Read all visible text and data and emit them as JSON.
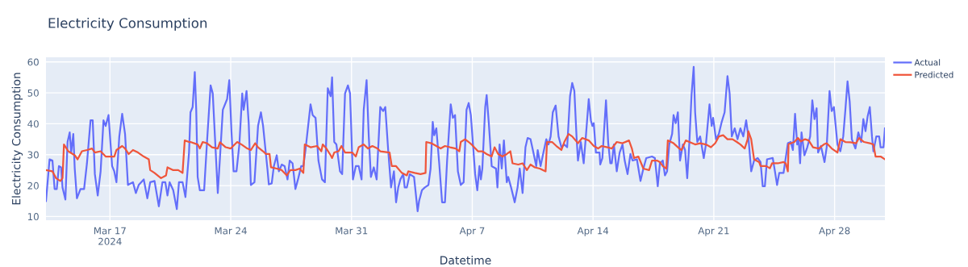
{
  "chart_data": {
    "type": "line",
    "title": "Electricity Consumption",
    "xlabel": "Datetime",
    "ylabel": "Electricity Consumption",
    "xlim": [
      "2024-03-13T07:00",
      "2024-04-30T22:00"
    ],
    "ylim": [
      8.8,
      61.5
    ],
    "yticks": [
      10,
      20,
      30,
      40,
      50,
      60
    ],
    "xticks": [
      {
        "value": "2024-03-17",
        "label": "Mar 17\n2024"
      },
      {
        "value": "2024-03-24",
        "label": "Mar 24"
      },
      {
        "value": "2024-03-31",
        "label": "Mar 31"
      },
      {
        "value": "2024-04-07",
        "label": "Apr 7"
      },
      {
        "value": "2024-04-14",
        "label": "Apr 14"
      },
      {
        "value": "2024-04-21",
        "label": "Apr 21"
      },
      {
        "value": "2024-04-28",
        "label": "Apr 28"
      }
    ],
    "grid": true,
    "legend": "top right",
    "marker": "none",
    "line_style": "solid",
    "series": [
      {
        "name": "Actual",
        "color": "#636efa",
        "x": [
          "2024-03-13T07:00",
          "2024-03-13T12:00",
          "2024-03-13T16:00",
          "2024-03-13T19:00",
          "2024-03-13T22:00",
          "2024-03-14T01:00",
          "2024-03-14T04:00",
          "2024-03-14T06:00",
          "2024-03-14T10:00",
          "2024-03-14T13:00",
          "2024-03-14T16:00",
          "2024-03-14T18:00",
          "2024-03-14T21:00",
          "2024-03-14T23:00",
          "2024-03-15T02:00",
          "2024-03-15T07:00",
          "2024-03-15T12:00",
          "2024-03-15T16:00",
          "2024-03-15T21:00",
          "2024-03-16T00:00",
          "2024-03-16T03:00",
          "2024-03-16T07:00",
          "2024-03-16T11:00",
          "2024-03-16T15:00",
          "2024-03-16T18:00",
          "2024-03-16T22:00",
          "2024-03-17T03:00",
          "2024-03-17T06:00",
          "2024-03-17T09:00",
          "2024-03-17T13:00",
          "2024-03-17T17:00",
          "2024-03-17T21:00",
          "2024-03-18T01:00",
          "2024-03-18T08:00",
          "2024-03-18T12:00",
          "2024-03-18T16:00",
          "2024-03-18T23:00",
          "2024-03-19T04:00",
          "2024-03-19T08:00",
          "2024-03-19T14:00",
          "2024-03-19T20:00",
          "2024-03-20T01:00",
          "2024-03-20T05:00",
          "2024-03-20T08:00",
          "2024-03-20T11:00",
          "2024-03-20T16:00",
          "2024-03-20T21:00",
          "2024-03-21T00:00",
          "2024-03-21T05:00",
          "2024-03-21T09:00",
          "2024-03-21T14:00",
          "2024-03-21T16:00",
          "2024-03-21T19:00",
          "2024-03-21T22:00",
          "2024-03-22T00:00",
          "2024-03-22T02:00",
          "2024-03-22T05:00",
          "2024-03-22T11:00",
          "2024-03-22T15:00",
          "2024-03-22T20:00",
          "2024-03-22T23:00",
          "2024-03-23T02:00",
          "2024-03-23T06:00",
          "2024-03-23T09:00",
          "2024-03-23T13:00",
          "2024-03-23T19:00",
          "2024-03-23T22:00",
          "2024-03-24T01:00",
          "2024-03-24T04:00",
          "2024-03-24T08:00",
          "2024-03-24T12:00",
          "2024-03-24T16:00",
          "2024-03-24T18:00",
          "2024-03-24T22:00",
          "2024-03-25T01:00",
          "2024-03-25T04:00",
          "2024-03-25T09:00",
          "2024-03-25T14:00",
          "2024-03-25T18:00",
          "2024-03-25T21:00",
          "2024-03-26T00:00",
          "2024-03-26T03:00",
          "2024-03-26T05:00",
          "2024-03-26T09:00",
          "2024-03-26T12:00",
          "2024-03-26T16:00",
          "2024-03-26T19:00",
          "2024-03-26T23:00",
          "2024-03-27T03:00",
          "2024-03-27T07:00",
          "2024-03-27T10:00",
          "2024-03-27T14:00",
          "2024-03-27T18:00",
          "2024-03-27T22:00",
          "2024-03-28T02:00",
          "2024-03-28T05:00",
          "2024-03-28T08:00",
          "2024-03-28T15:00",
          "2024-03-28T18:00",
          "2024-03-28T22:00",
          "2024-03-29T02:00",
          "2024-03-29T07:00",
          "2024-03-29T11:00",
          "2024-03-29T15:00",
          "2024-03-29T19:00",
          "2024-03-29T21:00",
          "2024-03-30T00:00",
          "2024-03-30T03:00",
          "2024-03-30T08:00",
          "2024-03-30T11:00",
          "2024-03-30T15:00",
          "2024-03-30T19:00",
          "2024-03-30T22:00",
          "2024-03-31T01:00",
          "2024-03-31T02:00",
          "2024-03-31T06:00",
          "2024-03-31T10:00",
          "2024-03-31T14:00",
          "2024-03-31T17:00",
          "2024-03-31T21:00",
          "2024-04-01T00:00",
          "2024-04-01T03:00",
          "2024-04-01T07:00",
          "2024-04-01T11:00",
          "2024-04-01T16:00",
          "2024-04-01T20:00",
          "2024-04-01T23:00",
          "2024-04-02T03:00",
          "2024-04-02T07:00",
          "2024-04-02T11:00",
          "2024-04-02T14:00",
          "2024-04-02T17:00",
          "2024-04-02T20:00",
          "2024-04-03T00:00",
          "2024-04-03T02:00",
          "2024-04-03T05:00",
          "2024-04-03T09:00",
          "2024-04-03T15:00",
          "2024-04-03T20:00",
          "2024-04-03T22:00",
          "2024-04-04T02:00",
          "2024-04-04T06:00",
          "2024-04-04T11:00",
          "2024-04-04T14:00",
          "2024-04-04T17:00",
          "2024-04-04T19:00",
          "2024-04-04T22:00",
          "2024-04-05T02:00",
          "2024-04-05T06:00",
          "2024-04-05T10:00",
          "2024-04-05T13:00",
          "2024-04-05T18:00",
          "2024-04-05T21:00",
          "2024-04-06T00:00",
          "2024-04-06T04:00",
          "2024-04-06T08:00",
          "2024-04-06T12:00",
          "2024-04-06T16:00",
          "2024-04-06T19:00",
          "2024-04-06T22:00",
          "2024-04-07T01:00",
          "2024-04-07T04:00",
          "2024-04-07T07:00",
          "2024-04-07T10:00",
          "2024-04-07T12:00",
          "2024-04-07T14:00",
          "2024-04-07T18:00",
          "2024-04-07T20:00",
          "2024-04-07T23:00",
          "2024-04-08T03:00",
          "2024-04-08T09:00",
          "2024-04-08T11:00",
          "2024-04-08T14:00",
          "2024-04-08T17:00",
          "2024-04-08T20:00",
          "2024-04-09T00:00",
          "2024-04-09T02:00",
          "2024-04-09T06:00",
          "2024-04-09T11:00",
          "2024-04-09T15:00",
          "2024-04-09T18:00",
          "2024-04-09T22:00",
          "2024-04-10T02:00",
          "2024-04-10T05:00",
          "2024-04-10T09:00",
          "2024-04-10T13:00",
          "2024-04-10T17:00",
          "2024-04-10T19:00",
          "2024-04-10T23:00",
          "2024-04-11T03:00",
          "2024-04-11T07:00",
          "2024-04-11T10:00",
          "2024-04-11T13:00",
          "2024-04-11T16:00",
          "2024-04-11T20:00",
          "2024-04-12T00:00",
          "2024-04-12T04:00",
          "2024-04-12T08:00",
          "2024-04-12T12:00",
          "2024-04-12T16:00",
          "2024-04-12T19:00",
          "2024-04-12T22:00",
          "2024-04-13T01:00",
          "2024-04-13T03:00",
          "2024-04-13T07:00",
          "2024-04-13T11:00",
          "2024-04-13T14:00",
          "2024-04-13T18:00",
          "2024-04-13T21:00",
          "2024-04-13T23:00",
          "2024-04-14T01:00",
          "2024-04-14T04:00",
          "2024-04-14T09:00",
          "2024-04-14T10:00",
          "2024-04-14T13:00",
          "2024-04-14T16:00",
          "2024-04-14T18:00",
          "2024-04-14T21:00",
          "2024-04-15T00:00",
          "2024-04-15T02:00",
          "2024-04-15T05:00",
          "2024-04-15T09:00",
          "2024-04-15T13:00",
          "2024-04-15T17:00",
          "2024-04-15T20:00",
          "2024-04-16T00:00",
          "2024-04-16T04:00",
          "2024-04-16T07:00",
          "2024-04-16T13:00",
          "2024-04-16T18:00",
          "2024-04-16T22:00",
          "2024-04-17T02:00",
          "2024-04-17T10:00",
          "2024-04-17T14:00",
          "2024-04-17T18:00",
          "2024-04-17T21:00",
          "2024-04-18T01:00",
          "2024-04-18T04:00",
          "2024-04-18T07:00",
          "2024-04-18T10:00",
          "2024-04-18T14:00",
          "2024-04-18T16:00",
          "2024-04-18T19:00",
          "2024-04-18T22:00",
          "2024-04-19T01:00",
          "2024-04-19T05:00",
          "2024-04-19T08:00",
          "2024-04-19T11:00",
          "2024-04-19T14:00",
          "2024-04-19T17:00",
          "2024-04-19T20:00",
          "2024-04-19T22:00",
          "2024-04-20T01:00",
          "2024-04-20T05:00",
          "2024-04-20T10:00",
          "2024-04-20T13:00",
          "2024-04-20T18:00",
          "2024-04-20T21:00",
          "2024-04-20T23:00",
          "2024-04-21T03:00",
          "2024-04-21T07:00",
          "2024-04-21T11:00",
          "2024-04-21T15:00",
          "2024-04-21T19:00",
          "2024-04-21T22:00",
          "2024-04-22T01:00",
          "2024-04-22T05:00",
          "2024-04-22T09:00",
          "2024-04-22T13:00",
          "2024-04-22T17:00",
          "2024-04-22T21:00",
          "2024-04-23T00:00",
          "2024-04-23T04:00",
          "2024-04-23T08:00",
          "2024-04-23T13:00",
          "2024-04-23T17:00",
          "2024-04-23T20:00",
          "2024-04-23T23:00",
          "2024-04-24T02:00",
          "2024-04-24T10:00",
          "2024-04-24T13:00",
          "2024-04-24T16:00",
          "2024-04-24T19:00",
          "2024-04-25T01:00",
          "2024-04-25T04:00",
          "2024-04-25T07:00",
          "2024-04-25T11:00",
          "2024-04-25T14:00",
          "2024-04-25T17:00",
          "2024-04-25T20:00",
          "2024-04-25T22:00",
          "2024-04-26T00:00",
          "2024-04-26T02:00",
          "2024-04-26T06:00",
          "2024-04-26T10:00",
          "2024-04-26T14:00",
          "2024-04-26T17:00",
          "2024-04-26T20:00",
          "2024-04-26T23:00",
          "2024-04-27T01:00",
          "2024-04-27T05:00",
          "2024-04-27T10:00",
          "2024-04-27T13:00",
          "2024-04-27T17:00",
          "2024-04-27T20:00",
          "2024-04-27T23:00",
          "2024-04-28T04:00",
          "2024-04-28T08:00",
          "2024-04-28T12:00",
          "2024-04-28T15:00",
          "2024-04-28T18:00",
          "2024-04-28T21:00",
          "2024-04-29T00:00",
          "2024-04-29T05:00",
          "2024-04-29T09:00",
          "2024-04-29T13:00",
          "2024-04-29T16:00",
          "2024-04-29T19:00",
          "2024-04-29T22:00",
          "2024-04-30T01:00",
          "2024-04-30T04:00",
          "2024-04-30T06:00",
          "2024-04-30T10:00",
          "2024-04-30T14:00",
          "2024-04-30T16:00",
          "2024-04-30T20:00",
          "2024-04-30T22:00"
        ],
        "values": [
          15.0,
          28.5,
          28.1,
          18.9,
          18.9,
          26.3,
          25.9,
          19.4,
          15.5,
          34.1,
          37.2,
          30.7,
          36.7,
          25.5,
          15.9,
          18.9,
          18.9,
          27.2,
          41.1,
          41.1,
          23.7,
          16.8,
          24.6,
          41.1,
          39.3,
          42.8,
          26.3,
          24.6,
          21.1,
          35.9,
          43.2,
          36.7,
          20.2,
          21.1,
          17.6,
          20.2,
          22.0,
          15.9,
          21.1,
          21.5,
          13.3,
          21.1,
          21.1,
          16.8,
          21.1,
          18.5,
          12.4,
          21.1,
          21.1,
          16.3,
          30.7,
          43.7,
          45.4,
          56.7,
          44.5,
          22.8,
          18.5,
          18.5,
          34.1,
          52.4,
          49.8,
          35.9,
          17.6,
          28.9,
          44.5,
          48.0,
          54.1,
          37.6,
          24.6,
          24.6,
          33.3,
          49.8,
          44.5,
          50.6,
          40.2,
          20.2,
          21.1,
          39.3,
          43.7,
          39.3,
          32.4,
          25.5,
          20.4,
          20.7,
          26.3,
          29.8,
          24.6,
          26.8,
          26.3,
          22.0,
          28.1,
          27.2,
          18.9,
          22.4,
          26.3,
          26.3,
          31.5,
          46.3,
          42.8,
          41.9,
          28.1,
          22.0,
          21.1,
          51.5,
          48.9,
          55.0,
          34.1,
          33.3,
          24.6,
          23.7,
          49.8,
          52.4,
          49.8,
          28.9,
          22.0,
          26.3,
          26.3,
          22.0,
          44.5,
          54.1,
          35.9,
          22.8,
          25.9,
          22.0,
          45.4,
          44.1,
          45.4,
          31.5,
          19.4,
          24.6,
          14.6,
          19.4,
          22.0,
          23.7,
          19.4,
          19.4,
          23.7,
          22.8,
          11.7,
          15.0,
          18.5,
          19.4,
          20.2,
          25.5,
          40.6,
          36.3,
          38.5,
          27.2,
          14.6,
          14.6,
          28.1,
          46.3,
          41.9,
          42.8,
          24.6,
          20.2,
          21.1,
          44.5,
          46.7,
          42.8,
          33.3,
          23.7,
          18.5,
          26.3,
          22.0,
          25.5,
          45.4,
          49.3,
          40.2,
          26.3,
          25.5,
          19.4,
          33.3,
          25.5,
          34.6,
          21.1,
          22.8,
          19.4,
          14.6,
          19.4,
          25.5,
          17.6,
          32.4,
          35.4,
          35.0,
          30.7,
          26.3,
          31.5,
          26.3,
          30.7,
          35.0,
          33.3,
          35.9,
          43.7,
          45.9,
          35.9,
          32.4,
          33.3,
          32.4,
          48.9,
          53.2,
          50.6,
          35.9,
          28.1,
          34.1,
          27.2,
          35.9,
          48.0,
          41.1,
          39.3,
          40.2,
          30.7,
          30.7,
          26.8,
          28.9,
          40.2,
          47.6,
          34.1,
          27.2,
          27.2,
          33.3,
          24.6,
          30.7,
          33.3,
          28.1,
          23.7,
          30.2,
          28.1,
          28.5,
          21.5,
          25.5,
          28.9,
          29.4,
          28.9,
          19.8,
          27.2,
          28.1,
          23.3,
          24.6,
          33.3,
          36.7,
          42.8,
          40.2,
          43.7,
          28.1,
          33.3,
          31.5,
          22.4,
          34.1,
          49.3,
          58.4,
          43.7,
          34.1,
          35.9,
          28.9,
          33.3,
          46.3,
          39.3,
          41.9,
          35.0,
          36.7,
          40.6,
          43.7,
          55.4,
          49.8,
          35.9,
          38.5,
          35.0,
          38.5,
          35.9,
          41.1,
          35.9,
          24.6,
          28.1,
          28.9,
          27.6,
          19.8,
          19.8,
          28.5,
          28.9,
          24.6,
          20.2,
          24.1,
          24.1,
          28.9,
          33.7,
          34.1,
          31.5,
          43.2,
          33.3,
          35.0,
          27.2,
          37.2,
          29.8,
          32.4,
          35.9,
          47.6,
          41.5,
          45.0,
          30.7,
          32.8,
          27.6,
          32.4,
          50.6,
          44.1,
          45.4,
          33.3,
          31.1,
          35.9,
          44.5,
          53.7,
          47.2,
          35.0,
          32.0,
          37.2,
          34.1,
          41.5,
          37.6,
          42.4,
          45.4,
          35.9,
          31.1,
          35.9,
          35.9,
          32.4,
          32.4,
          38.5
        ]
      },
      {
        "name": "Predicted",
        "color": "#ef553b",
        "x": [
          "2024-03-13T07:00",
          "2024-03-13T16:00",
          "2024-03-13T21:00",
          "2024-03-14T03:00",
          "2024-03-14T06:00",
          "2024-03-14T08:00",
          "2024-03-14T14:00",
          "2024-03-14T23:00",
          "2024-03-15T03:00",
          "2024-03-15T09:00",
          "2024-03-15T16:00",
          "2024-03-15T23:00",
          "2024-03-16T03:00",
          "2024-03-16T11:00",
          "2024-03-16T18:00",
          "2024-03-17T06:00",
          "2024-03-17T09:00",
          "2024-03-17T17:00",
          "2024-03-17T21:00",
          "2024-03-18T02:00",
          "2024-03-18T08:00",
          "2024-03-18T15:00",
          "2024-03-18T23:00",
          "2024-03-19T06:00",
          "2024-03-19T08:00",
          "2024-03-19T14:00",
          "2024-03-19T23:00",
          "2024-03-20T06:00",
          "2024-03-20T08:00",
          "2024-03-20T16:00",
          "2024-03-20T23:00",
          "2024-03-21T05:00",
          "2024-03-21T08:00",
          "2024-03-21T14:00",
          "2024-03-21T16:00",
          "2024-03-22T02:00",
          "2024-03-22T05:00",
          "2024-03-22T09:00",
          "2024-03-22T15:00",
          "2024-03-22T22:00",
          "2024-03-23T06:00",
          "2024-03-23T09:00",
          "2024-03-23T17:00",
          "2024-03-24T00:00",
          "2024-03-24T09:00",
          "2024-03-24T15:00",
          "2024-03-24T23:00",
          "2024-03-25T04:00",
          "2024-03-25T10:00",
          "2024-03-25T14:00",
          "2024-03-25T21:00",
          "2024-03-26T01:00",
          "2024-03-26T06:00",
          "2024-03-26T08:00",
          "2024-03-26T16:00",
          "2024-03-26T23:00",
          "2024-03-27T06:00",
          "2024-03-27T11:00",
          "2024-03-27T18:00",
          "2024-03-28T00:00",
          "2024-03-28T05:00",
          "2024-03-28T07:00",
          "2024-03-28T15:00",
          "2024-03-29T00:00",
          "2024-03-29T06:00",
          "2024-03-29T08:00",
          "2024-03-29T13:00",
          "2024-03-29T19:00",
          "2024-03-29T21:00",
          "2024-03-30T00:00",
          "2024-03-30T06:00",
          "2024-03-30T10:00",
          "2024-03-30T15:00",
          "2024-03-31T01:00",
          "2024-03-31T06:00",
          "2024-03-31T10:00",
          "2024-03-31T17:00",
          "2024-03-31T23:00",
          "2024-04-01T05:00",
          "2024-04-01T12:00",
          "2024-04-01T16:00",
          "2024-04-02T05:00",
          "2024-04-02T08:00",
          "2024-04-02T14:00",
          "2024-04-02T22:00",
          "2024-04-03T05:00",
          "2024-04-03T07:00",
          "2024-04-03T16:00",
          "2024-04-04T00:00",
          "2024-04-04T07:00",
          "2024-04-04T08:00",
          "2024-04-04T15:00",
          "2024-04-04T22:00",
          "2024-04-05T04:00",
          "2024-04-05T10:00",
          "2024-04-05T17:00",
          "2024-04-06T01:00",
          "2024-04-06T06:00",
          "2024-04-06T08:00",
          "2024-04-06T14:00",
          "2024-04-06T19:00",
          "2024-04-06T23:00",
          "2024-04-07T01:00",
          "2024-04-07T08:00",
          "2024-04-07T14:00",
          "2024-04-07T20:00",
          "2024-04-08T03:00",
          "2024-04-08T07:00",
          "2024-04-08T12:00",
          "2024-04-08T18:00",
          "2024-04-09T00:00",
          "2024-04-09T05:00",
          "2024-04-09T08:00",
          "2024-04-09T16:00",
          "2024-04-09T22:00",
          "2024-04-10T04:00",
          "2024-04-10T09:00",
          "2024-04-10T15:00",
          "2024-04-10T22:00",
          "2024-04-11T06:00",
          "2024-04-11T08:00",
          "2024-04-11T15:00",
          "2024-04-11T21:00",
          "2024-04-12T04:00",
          "2024-04-12T08:00",
          "2024-04-12T14:00",
          "2024-04-12T19:00",
          "2024-04-13T03:00",
          "2024-04-13T09:00",
          "2024-04-13T18:00",
          "2024-04-14T01:00",
          "2024-04-14T07:00",
          "2024-04-14T12:00",
          "2024-04-14T20:00",
          "2024-04-15T02:00",
          "2024-04-15T09:00",
          "2024-04-15T17:00",
          "2024-04-16T02:00",
          "2024-04-16T06:00",
          "2024-04-16T09:00",
          "2024-04-16T15:00",
          "2024-04-16T19:00",
          "2024-04-16T22:00",
          "2024-04-17T06:00",
          "2024-04-17T10:00",
          "2024-04-17T17:00",
          "2024-04-17T21:00",
          "2024-04-18T01:00",
          "2024-04-18T06:00",
          "2024-04-18T08:00",
          "2024-04-18T16:00",
          "2024-04-19T00:00",
          "2024-04-19T03:00",
          "2024-04-19T09:00",
          "2024-04-19T14:00",
          "2024-04-19T22:00",
          "2024-04-20T05:00",
          "2024-04-20T13:00",
          "2024-04-20T20:00",
          "2024-04-21T02:00",
          "2024-04-21T07:00",
          "2024-04-21T13:00",
          "2024-04-21T19:00",
          "2024-04-22T02:00",
          "2024-04-22T08:00",
          "2024-04-22T13:00",
          "2024-04-22T19:00",
          "2024-04-22T23:00",
          "2024-04-23T00:00",
          "2024-04-23T04:00",
          "2024-04-23T08:00",
          "2024-04-23T11:00",
          "2024-04-23T15:00",
          "2024-04-23T17:00",
          "2024-04-24T01:00",
          "2024-04-24T06:00",
          "2024-04-24T09:00",
          "2024-04-24T17:00",
          "2024-04-25T01:00",
          "2024-04-25T04:00",
          "2024-04-25T07:00",
          "2024-04-25T08:00",
          "2024-04-25T16:00",
          "2024-04-25T21:00",
          "2024-04-26T01:00",
          "2024-04-26T07:00",
          "2024-04-26T12:00",
          "2024-04-26T18:00",
          "2024-04-27T02:00",
          "2024-04-27T09:00",
          "2024-04-27T13:00",
          "2024-04-27T20:00",
          "2024-04-28T04:00",
          "2024-04-28T08:00",
          "2024-04-28T15:00",
          "2024-04-28T22:00",
          "2024-04-29T06:00",
          "2024-04-29T10:00",
          "2024-04-29T17:00",
          "2024-04-30T01:00",
          "2024-04-30T06:00",
          "2024-04-30T09:00",
          "2024-04-30T16:00",
          "2024-04-30T22:00"
        ],
        "values": [
          25.0,
          24.6,
          22.4,
          21.5,
          22.4,
          33.3,
          31.1,
          29.8,
          28.5,
          31.1,
          31.5,
          32.0,
          30.7,
          31.1,
          29.4,
          29.4,
          31.5,
          32.8,
          32.0,
          30.2,
          31.5,
          30.7,
          29.4,
          28.5,
          25.0,
          24.1,
          22.4,
          23.3,
          25.9,
          25.0,
          25.0,
          24.1,
          34.6,
          34.1,
          34.1,
          33.3,
          32.0,
          34.1,
          33.7,
          32.4,
          32.0,
          34.0,
          32.4,
          32.0,
          34.1,
          33.3,
          32.0,
          31.5,
          33.7,
          32.4,
          31.1,
          30.2,
          30.2,
          25.9,
          25.5,
          25.0,
          23.3,
          25.0,
          25.0,
          25.5,
          24.1,
          33.3,
          32.4,
          32.8,
          31.1,
          33.3,
          32.0,
          29.8,
          28.9,
          30.7,
          31.1,
          32.8,
          30.7,
          30.7,
          29.4,
          32.4,
          33.3,
          32.0,
          32.8,
          32.0,
          31.1,
          30.7,
          26.3,
          26.3,
          24.1,
          23.3,
          24.6,
          24.1,
          23.7,
          24.1,
          34.1,
          33.7,
          32.8,
          32.0,
          32.8,
          32.4,
          32.0,
          31.1,
          34.1,
          35.0,
          34.1,
          33.3,
          32.8,
          31.1,
          31.1,
          30.2,
          29.4,
          32.4,
          30.2,
          29.4,
          30.2,
          31.1,
          27.2,
          26.8,
          27.2,
          25.0,
          26.8,
          25.9,
          25.5,
          24.6,
          34.1,
          34.1,
          32.8,
          31.5,
          34.1,
          36.7,
          35.9,
          33.7,
          35.4,
          34.6,
          32.8,
          32.0,
          32.8,
          32.4,
          32.0,
          34.1,
          33.7,
          34.6,
          32.0,
          28.9,
          29.4,
          27.2,
          25.5,
          25.0,
          28.1,
          28.1,
          27.6,
          26.3,
          25.5,
          34.6,
          33.7,
          32.0,
          31.5,
          34.6,
          34.1,
          33.3,
          33.7,
          33.3,
          32.4,
          33.7,
          35.9,
          36.3,
          35.0,
          35.0,
          34.1,
          33.3,
          32.0,
          35.0,
          37.6,
          35.0,
          28.5,
          28.1,
          27.6,
          26.3,
          26.3,
          25.6,
          27.2,
          27.2,
          27.6,
          27.2,
          24.6,
          33.4,
          34.1,
          35.4,
          34.3,
          35.0,
          34.6,
          32.4,
          32.0,
          33.3,
          33.7,
          32.0,
          30.7,
          35.0,
          34.1,
          34.0,
          33.7,
          35.4,
          34.1,
          33.7,
          33.3,
          29.4,
          29.4,
          28.5
        ]
      }
    ]
  }
}
